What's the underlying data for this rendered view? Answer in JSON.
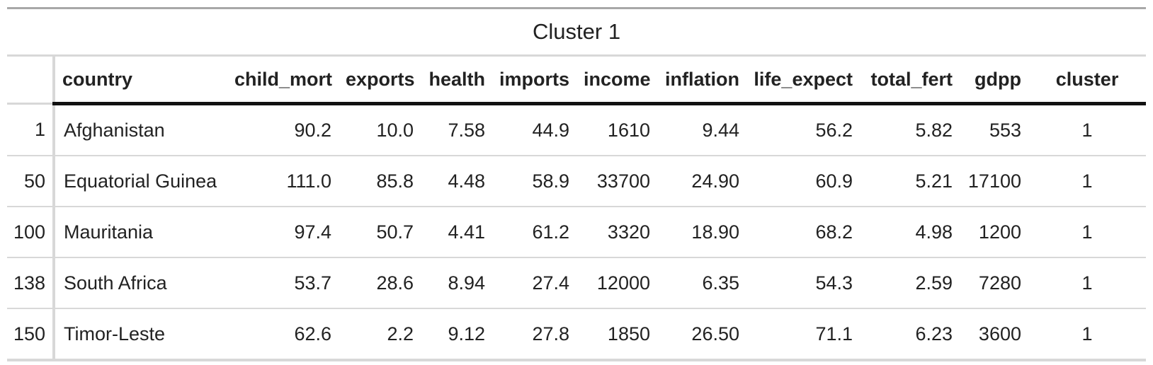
{
  "title": "Cluster 1",
  "columns": [
    {
      "key": "index",
      "label": ""
    },
    {
      "key": "country",
      "label": "country"
    },
    {
      "key": "child_mort",
      "label": "child_mort"
    },
    {
      "key": "exports",
      "label": "exports"
    },
    {
      "key": "health",
      "label": "health"
    },
    {
      "key": "imports",
      "label": "imports"
    },
    {
      "key": "income",
      "label": "income"
    },
    {
      "key": "inflation",
      "label": "inflation"
    },
    {
      "key": "life_expect",
      "label": "life_expect"
    },
    {
      "key": "total_fert",
      "label": "total_fert"
    },
    {
      "key": "gdpp",
      "label": "gdpp"
    },
    {
      "key": "cluster",
      "label": "cluster"
    }
  ],
  "rows": [
    {
      "index": "1",
      "country": "Afghanistan",
      "child_mort": "90.2",
      "exports": "10.0",
      "health": "7.58",
      "imports": "44.9",
      "income": "1610",
      "inflation": "9.44",
      "life_expect": "56.2",
      "total_fert": "5.82",
      "gdpp": "553",
      "cluster": "1"
    },
    {
      "index": "50",
      "country": "Equatorial Guinea",
      "child_mort": "111.0",
      "exports": "85.8",
      "health": "4.48",
      "imports": "58.9",
      "income": "33700",
      "inflation": "24.90",
      "life_expect": "60.9",
      "total_fert": "5.21",
      "gdpp": "17100",
      "cluster": "1"
    },
    {
      "index": "100",
      "country": "Mauritania",
      "child_mort": "97.4",
      "exports": "50.7",
      "health": "4.41",
      "imports": "61.2",
      "income": "3320",
      "inflation": "18.90",
      "life_expect": "68.2",
      "total_fert": "4.98",
      "gdpp": "1200",
      "cluster": "1"
    },
    {
      "index": "138",
      "country": "South Africa",
      "child_mort": "53.7",
      "exports": "28.6",
      "health": "8.94",
      "imports": "27.4",
      "income": "12000",
      "inflation": "6.35",
      "life_expect": "54.3",
      "total_fert": "2.59",
      "gdpp": "7280",
      "cluster": "1"
    },
    {
      "index": "150",
      "country": "Timor-Leste",
      "child_mort": "62.6",
      "exports": "2.2",
      "health": "9.12",
      "imports": "27.8",
      "income": "1850",
      "inflation": "26.50",
      "life_expect": "71.1",
      "total_fert": "6.23",
      "gdpp": "3600",
      "cluster": "1"
    }
  ]
}
